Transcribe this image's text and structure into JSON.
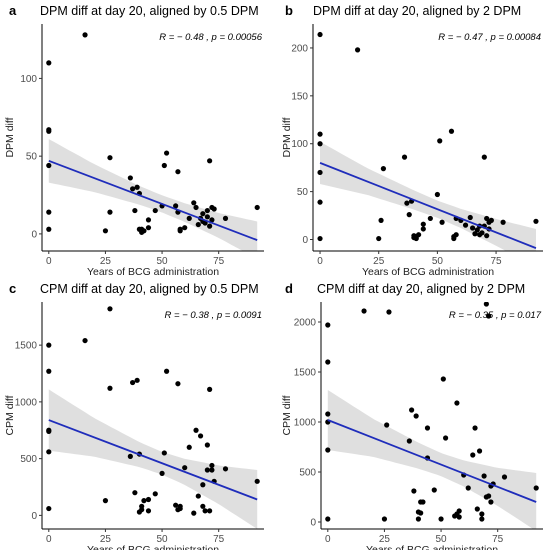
{
  "chart_data": [
    {
      "type": "scatter",
      "panel": "a",
      "title": "DPM diff at day 20, aligned by 0.5 DPM",
      "xlabel": "Years of BCG administration",
      "ylabel": "DPM diff",
      "xlim": [
        -3,
        95
      ],
      "ylim": [
        -11,
        135
      ],
      "xticks": [
        0,
        25,
        50,
        75
      ],
      "yticks": [
        0,
        50,
        100
      ],
      "stat": "R = − 0.48 , p = 0.00056",
      "grid": false,
      "colors": {
        "points": "#000000",
        "line": "#1f2dbb",
        "band": "#d9d9d9"
      },
      "regression": {
        "x": [
          0,
          92
        ],
        "y": [
          47,
          -4
        ]
      },
      "band_halfwidth": {
        "x": [
          0,
          20,
          40,
          50,
          60,
          75,
          92
        ],
        "w": [
          14,
          9,
          6,
          5.5,
          6,
          8,
          12
        ]
      },
      "points": {
        "x": [
          0,
          0,
          0,
          0,
          0,
          0,
          16,
          25,
          27,
          27,
          36,
          37,
          38,
          39,
          40,
          40,
          41,
          41,
          42,
          44,
          44,
          47,
          50,
          51,
          52,
          56,
          57,
          57,
          58,
          58,
          60,
          62,
          64,
          65,
          66,
          67,
          68,
          68,
          69,
          70,
          70,
          71,
          71,
          72,
          72,
          73,
          78,
          92
        ],
        "y": [
          110,
          67,
          66,
          44,
          14,
          3,
          128,
          2,
          49,
          14,
          36,
          29,
          15,
          30,
          3,
          26,
          3,
          1,
          2,
          4,
          9,
          15,
          18,
          44,
          52,
          18,
          40,
          14,
          3,
          2,
          4,
          10,
          20,
          17,
          6,
          10,
          13,
          8,
          7,
          11,
          15,
          47,
          5,
          9,
          17,
          16,
          10,
          17
        ]
      }
    },
    {
      "type": "scatter",
      "panel": "b",
      "title": "DPM diff at day 20, aligned by 2 DPM",
      "xlabel": "Years of BCG administration",
      "ylabel": "DPM diff",
      "xlim": [
        -3,
        95
      ],
      "ylim": [
        -12,
        225
      ],
      "xticks": [
        0,
        25,
        50,
        75
      ],
      "yticks": [
        0,
        50,
        100,
        150,
        200
      ],
      "stat": "R = − 0.47 , p = 0.00084",
      "grid": false,
      "colors": {
        "points": "#000000",
        "line": "#1f2dbb",
        "band": "#d9d9d9"
      },
      "regression": {
        "x": [
          0,
          92
        ],
        "y": [
          80,
          -9
        ]
      },
      "band_halfwidth": {
        "x": [
          0,
          20,
          40,
          50,
          60,
          75,
          92
        ],
        "w": [
          22,
          14,
          10,
          9,
          10,
          14,
          20
        ]
      },
      "points": {
        "x": [
          0,
          0,
          0,
          0,
          0,
          0,
          16,
          25,
          26,
          27,
          36,
          37,
          38,
          39,
          40,
          40,
          41,
          41,
          42,
          44,
          44,
          47,
          50,
          51,
          52,
          56,
          57,
          57,
          58,
          58,
          60,
          62,
          64,
          65,
          66,
          67,
          68,
          68,
          69,
          70,
          70,
          71,
          71,
          72,
          72,
          73,
          78,
          92
        ],
        "y": [
          214,
          110,
          100,
          70,
          39,
          1,
          198,
          1,
          20,
          74,
          86,
          38,
          26,
          40,
          2,
          4,
          3,
          1,
          5,
          11,
          16,
          22,
          47,
          103,
          18,
          113,
          3,
          1,
          5,
          22,
          20,
          15,
          23,
          12,
          6,
          10,
          14,
          5,
          7,
          14,
          86,
          22,
          4,
          11,
          18,
          20,
          18,
          19
        ]
      }
    },
    {
      "type": "scatter",
      "panel": "c",
      "title": "CPM diff at day 20, aligned by 0.5 DPM",
      "xlabel": "Years of BCG administration",
      "ylabel": "CPM diff",
      "xlim": [
        -3,
        95
      ],
      "ylim": [
        -120,
        1880
      ],
      "xticks": [
        0,
        25,
        50,
        75
      ],
      "yticks": [
        0,
        500,
        1000,
        1500
      ],
      "stat": "R = − 0.38 , p = 0.0091",
      "grid": false,
      "colors": {
        "points": "#000000",
        "line": "#1f2dbb",
        "band": "#d9d9d9"
      },
      "regression": {
        "x": [
          0,
          92
        ],
        "y": [
          840,
          140
        ]
      },
      "band_halfwidth": {
        "x": [
          0,
          20,
          40,
          50,
          60,
          75,
          92
        ],
        "w": [
          270,
          170,
          110,
          100,
          115,
          170,
          260
        ]
      },
      "points": {
        "x": [
          0,
          0,
          0,
          0,
          0,
          0,
          16,
          25,
          27,
          27,
          36,
          37,
          38,
          39,
          40,
          40,
          41,
          41,
          42,
          44,
          44,
          47,
          50,
          51,
          52,
          56,
          57,
          57,
          58,
          58,
          60,
          62,
          64,
          65,
          66,
          67,
          68,
          68,
          69,
          70,
          70,
          71,
          71,
          72,
          72,
          73,
          78,
          92
        ],
        "y": [
          1500,
          1270,
          750,
          560,
          60,
          740,
          1540,
          130,
          1820,
          1120,
          520,
          1170,
          200,
          1190,
          30,
          540,
          50,
          80,
          130,
          140,
          40,
          190,
          370,
          550,
          1270,
          90,
          1160,
          50,
          80,
          60,
          420,
          600,
          20,
          750,
          170,
          700,
          80,
          270,
          40,
          620,
          400,
          1110,
          40,
          400,
          440,
          300,
          410,
          300
        ]
      }
    },
    {
      "type": "scatter",
      "panel": "d",
      "title": "CPM diff at day 20, aligned by 2 DPM",
      "xlabel": "Years of BCG administration",
      "ylabel": "CPM diff",
      "xlim": [
        -3,
        95
      ],
      "ylim": [
        -70,
        2200
      ],
      "xticks": [
        0,
        25,
        50,
        75
      ],
      "yticks": [
        0,
        500,
        1000,
        1500,
        2000
      ],
      "stat": "R = − 0.35 , p = 0.017",
      "grid": false,
      "colors": {
        "points": "#000000",
        "line": "#1f2dbb",
        "band": "#d9d9d9"
      },
      "regression": {
        "x": [
          0,
          92
        ],
        "y": [
          1020,
          200
        ]
      },
      "band_halfwidth": {
        "x": [
          0,
          20,
          40,
          50,
          60,
          75,
          92
        ],
        "w": [
          300,
          190,
          130,
          115,
          130,
          190,
          290
        ]
      },
      "points": {
        "x": [
          0,
          0,
          0,
          0,
          0,
          0,
          16,
          25,
          26,
          27,
          36,
          37,
          38,
          39,
          40,
          40,
          41,
          41,
          42,
          44,
          44,
          47,
          50,
          51,
          52,
          56,
          57,
          57,
          58,
          58,
          60,
          62,
          64,
          65,
          66,
          67,
          68,
          68,
          69,
          70,
          70,
          71,
          71,
          72,
          72,
          73,
          78,
          92
        ],
        "y": [
          1970,
          1600,
          1080,
          1000,
          720,
          30,
          2110,
          30,
          970,
          2100,
          810,
          1120,
          310,
          1060,
          30,
          100,
          90,
          200,
          200,
          940,
          640,
          320,
          30,
          1430,
          840,
          60,
          1190,
          80,
          50,
          110,
          470,
          340,
          670,
          940,
          130,
          710,
          80,
          30,
          460,
          2180,
          250,
          260,
          2060,
          200,
          360,
          380,
          450,
          340
        ]
      }
    }
  ]
}
